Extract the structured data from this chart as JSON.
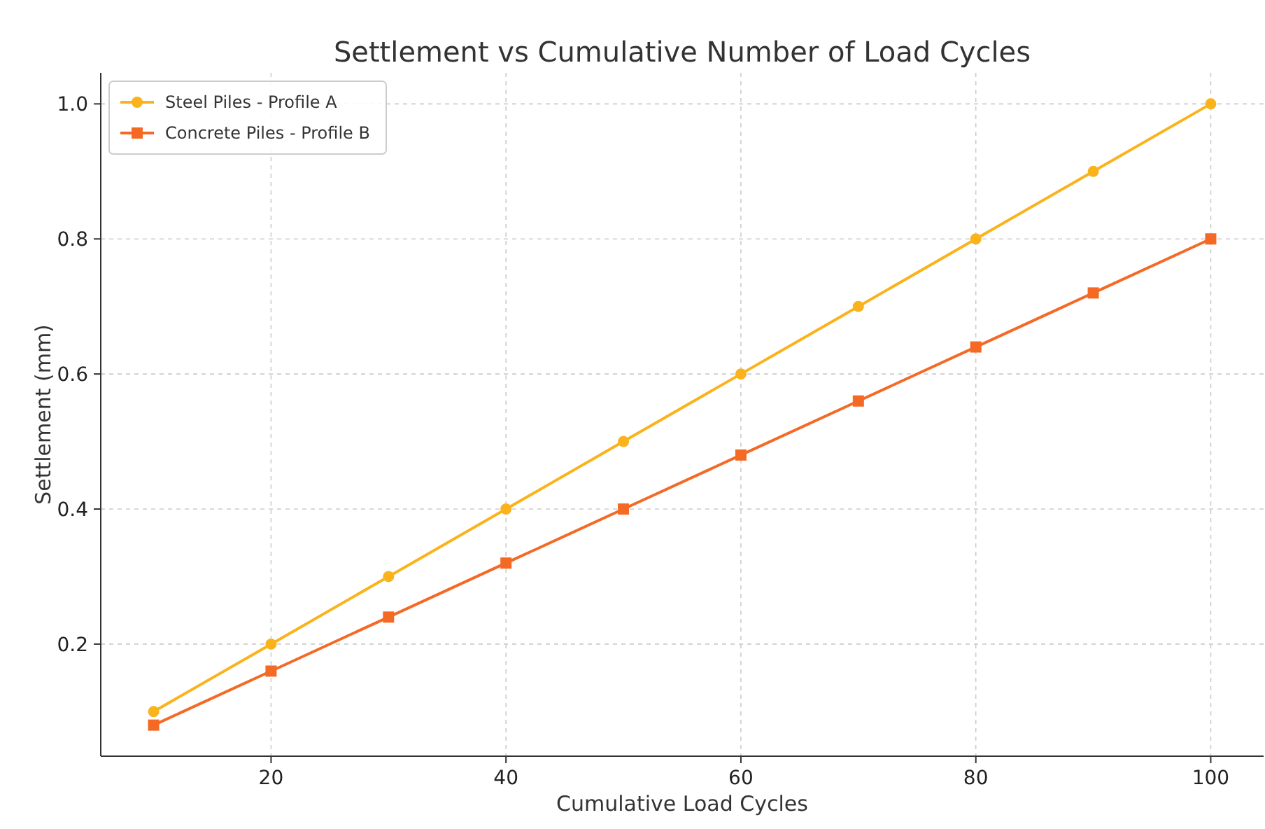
{
  "chart_data": {
    "type": "line",
    "title": "Settlement vs Cumulative Number of Load Cycles",
    "xlabel": "Cumulative Load Cycles",
    "ylabel": "Settlement (mm)",
    "x": [
      10,
      20,
      30,
      40,
      50,
      60,
      70,
      80,
      90,
      100
    ],
    "series": [
      {
        "name": "Steel Piles - Profile A",
        "color": "#fbb31c",
        "marker": "circle",
        "values": [
          0.1,
          0.2,
          0.3,
          0.4,
          0.5,
          0.6,
          0.7,
          0.8,
          0.9,
          1.0
        ]
      },
      {
        "name": "Concrete Piles - Profile B",
        "color": "#f46a25",
        "marker": "square",
        "values": [
          0.08,
          0.16,
          0.24,
          0.32,
          0.4,
          0.48,
          0.56,
          0.64,
          0.72,
          0.8
        ]
      }
    ],
    "xlim": [
      5.5,
      104.5
    ],
    "xticks": [
      20,
      40,
      60,
      80,
      100
    ],
    "ylim": [
      0.034,
      1.046
    ],
    "yticks": [
      {
        "value": 0.2,
        "label": "0.2"
      },
      {
        "value": 0.4,
        "label": "0.4"
      },
      {
        "value": 0.6,
        "label": "0.6"
      },
      {
        "value": 0.8,
        "label": "0.8"
      },
      {
        "value": 1.0,
        "label": "1.0"
      }
    ],
    "grid": true,
    "legend": "top left",
    "line_style": "solid"
  }
}
